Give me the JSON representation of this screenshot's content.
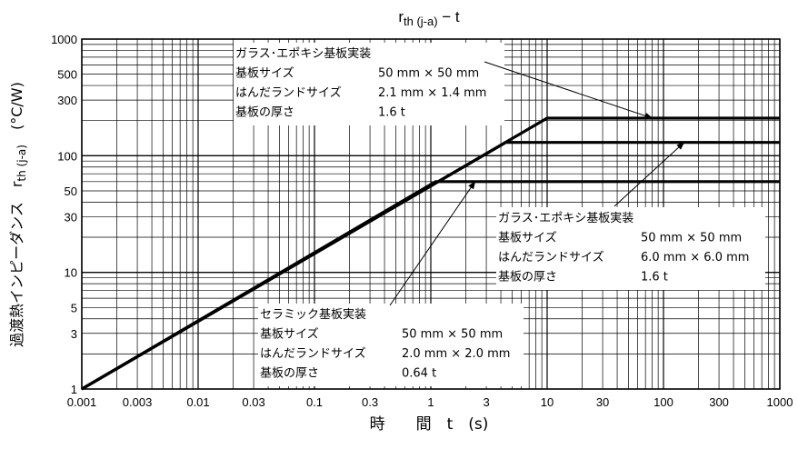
{
  "chart_data": {
    "type": "line",
    "title": "r th (j-a) − t",
    "title_parts": {
      "main": "r",
      "sub": "th (j-a)",
      "rest": " − t"
    },
    "xlabel": "時　　間　t　(s)",
    "ylabel": "過渡熱インピーダンス　r th (j-a)　(°C/W)",
    "ylabel_parts": {
      "main": "過渡熱インピーダンス　r",
      "sub": "th (j-a)",
      "rest": "　(°C/W)"
    },
    "x_scale": "log",
    "y_scale": "log",
    "xlim": [
      0.001,
      1000
    ],
    "ylim": [
      1,
      1000
    ],
    "grid": true,
    "xticks": [
      0.001,
      0.003,
      0.01,
      0.03,
      0.1,
      0.3,
      1,
      3,
      10,
      30,
      100,
      300,
      1000
    ],
    "xtick_labels": [
      "0.001",
      "0.003",
      "0.01",
      "0.03",
      "0.1",
      "0.3",
      "1",
      "3",
      "10",
      "30",
      "100",
      "300",
      "1000"
    ],
    "yticks": [
      1,
      3,
      5,
      10,
      30,
      50,
      100,
      300,
      500,
      1000
    ],
    "ytick_labels": [
      "1",
      "3",
      "5",
      "10",
      "30",
      "50",
      "100",
      "300",
      "500",
      "1000"
    ],
    "series": [
      {
        "x": [
          0.001,
          10,
          1000
        ],
        "y": [
          1,
          210,
          210
        ]
      },
      {
        "x": [
          0.001,
          4.4,
          1000
        ],
        "y": [
          1,
          130,
          130
        ]
      },
      {
        "x": [
          0.001,
          1.1,
          1000
        ],
        "y": [
          1,
          60,
          60
        ]
      }
    ],
    "annotations": [
      {
        "lines": [
          {
            "label": "ガラス･エポキシ基板実装",
            "value": ""
          },
          {
            "label": "基板サイズ",
            "value": "50 mm × 50 mm"
          },
          {
            "label": "はんだランドサイズ",
            "value": "2.1 mm × 1.4 mm"
          },
          {
            "label": "基板の厚さ",
            "value": "1.6 t"
          }
        ],
        "arrow_to": {
          "x": 80,
          "y": 210
        }
      },
      {
        "lines": [
          {
            "label": "ガラス･エポキシ基板実装",
            "value": ""
          },
          {
            "label": "基板サイズ",
            "value": "50 mm × 50 mm"
          },
          {
            "label": "はんだランドサイズ",
            "value": "6.0 mm × 6.0 mm"
          },
          {
            "label": "基板の厚さ",
            "value": "1.6 t"
          }
        ],
        "arrow_to": {
          "x": 150,
          "y": 130
        }
      },
      {
        "lines": [
          {
            "label": "セラミック基板実装",
            "value": ""
          },
          {
            "label": "基板サイズ",
            "value": "50 mm × 50 mm"
          },
          {
            "label": "はんだランドサイズ",
            "value": "2.0 mm × 2.0 mm"
          },
          {
            "label": "基板の厚さ",
            "value": "0.64 t"
          }
        ],
        "arrow_to": {
          "x": 2.4,
          "y": 60
        }
      }
    ]
  }
}
